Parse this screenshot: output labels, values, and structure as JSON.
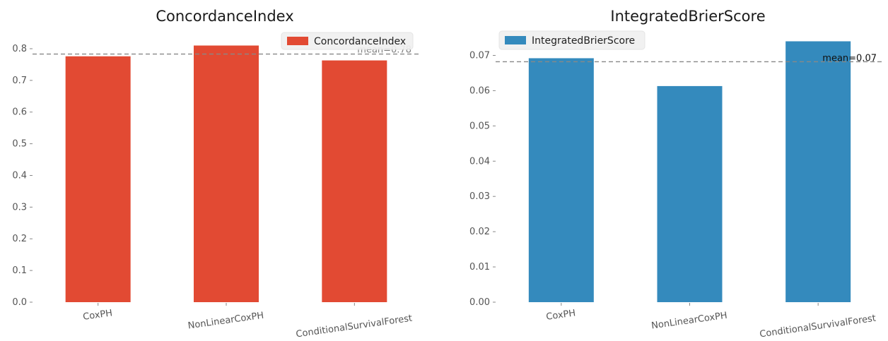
{
  "chart_data": [
    {
      "type": "bar",
      "title": "ConcordanceIndex",
      "categories": [
        "CoxPH",
        "NonLinearCoxPH",
        "ConditionalSurvivalForest"
      ],
      "series": [
        {
          "name": "ConcordanceIndex",
          "values": [
            0.776,
            0.81,
            0.763
          ]
        }
      ],
      "ylim": [
        0,
        0.82
      ],
      "yticks": [
        0.0,
        0.1,
        0.2,
        0.3,
        0.4,
        0.5,
        0.6,
        0.7,
        0.8
      ],
      "ytick_labels": [
        "0.0",
        "0.1",
        "0.2",
        "0.3",
        "0.4",
        "0.5",
        "0.6",
        "0.7",
        "0.8"
      ],
      "mean_line": {
        "value": 0.783,
        "label": "mean=0.78"
      },
      "legend_position": "top-right",
      "color": "#e24a33",
      "grid": false
    },
    {
      "type": "bar",
      "title": "IntegratedBrierScore",
      "categories": [
        "CoxPH",
        "NonLinearCoxPH",
        "ConditionalSurvivalForest"
      ],
      "series": [
        {
          "name": "IntegratedBrierScore",
          "values": [
            0.0692,
            0.0613,
            0.074
          ]
        }
      ],
      "ylim": [
        0,
        0.0745
      ],
      "yticks": [
        0.0,
        0.01,
        0.02,
        0.03,
        0.04,
        0.05,
        0.06,
        0.07
      ],
      "ytick_labels": [
        "0.00",
        "0.01",
        "0.02",
        "0.03",
        "0.04",
        "0.05",
        "0.06",
        "0.07"
      ],
      "mean_line": {
        "value": 0.0682,
        "label": "mean=0.07"
      },
      "legend_position": "top-left",
      "color": "#348abd",
      "grid": false
    }
  ]
}
